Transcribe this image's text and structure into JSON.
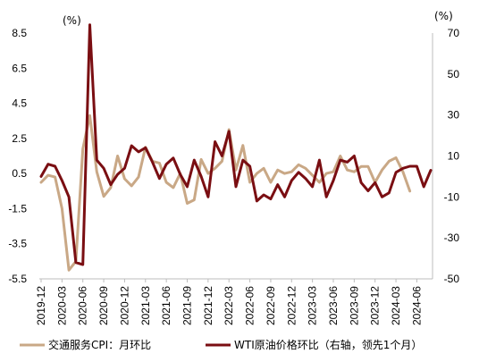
{
  "chart_data": {
    "type": "line",
    "left_unit": "(%)",
    "right_unit": "(%)",
    "x_tick_labels": [
      "2019-12",
      "2020-03",
      "2020-06",
      "2020-09",
      "2020-12",
      "2021-03",
      "2021-06",
      "2021-09",
      "2021-12",
      "2022-03",
      "2022-06",
      "2022-09",
      "2022-12",
      "2023-03",
      "2023-06",
      "2023-09",
      "2023-12",
      "2024-03",
      "2024-06"
    ],
    "y_left": {
      "ylim": [
        -5.5,
        8.5
      ],
      "ticks": [
        "8.5",
        "6.5",
        "4.5",
        "2.5",
        "0.5",
        "-1.5",
        "-3.5",
        "-5.5"
      ]
    },
    "y_right": {
      "ylim": [
        -50,
        70
      ],
      "ticks": [
        "70",
        "50",
        "30",
        "10",
        "-10",
        "-30",
        "-50"
      ]
    },
    "start_month": "2019-12",
    "series": [
      {
        "name": "交通服务CPI：月环比",
        "axis": "left",
        "color": "#C9A886",
        "values": [
          0.0,
          0.4,
          0.3,
          -1.5,
          -5.0,
          -4.5,
          1.9,
          3.8,
          0.6,
          -0.8,
          -0.3,
          1.5,
          0.2,
          -0.2,
          0.3,
          2.0,
          1.2,
          1.1,
          0.0,
          -0.3,
          0.5,
          -1.2,
          -1.0,
          1.3,
          0.5,
          0.8,
          1.2,
          3.0,
          0.7,
          2.1,
          0.0,
          0.5,
          0.8,
          0.0,
          0.7,
          0.5,
          0.6,
          1.0,
          0.8,
          0.4,
          0.0,
          0.5,
          0.6,
          1.5,
          0.7,
          0.6,
          0.9,
          0.9,
          0.0,
          0.7,
          1.2,
          1.4,
          0.6,
          -0.5
        ]
      },
      {
        "name": "WTI原油价格环比（右轴，领先1个月）",
        "axis": "right",
        "color": "#7A0E12",
        "values": [
          0,
          6,
          5,
          -2,
          -10,
          -42,
          -43,
          74,
          8,
          4,
          -4,
          1,
          4,
          15,
          12,
          14,
          7,
          -1,
          6,
          9,
          1,
          -5,
          8,
          0,
          -10,
          17,
          10,
          22,
          -5,
          8,
          5,
          -12,
          -9,
          -11,
          -4,
          -10,
          -2,
          2,
          -1,
          -5,
          8,
          -10,
          -2,
          8,
          7,
          10,
          -3,
          -7,
          -3,
          -10,
          -8,
          2,
          4,
          5,
          5,
          -5,
          3
        ]
      }
    ]
  }
}
